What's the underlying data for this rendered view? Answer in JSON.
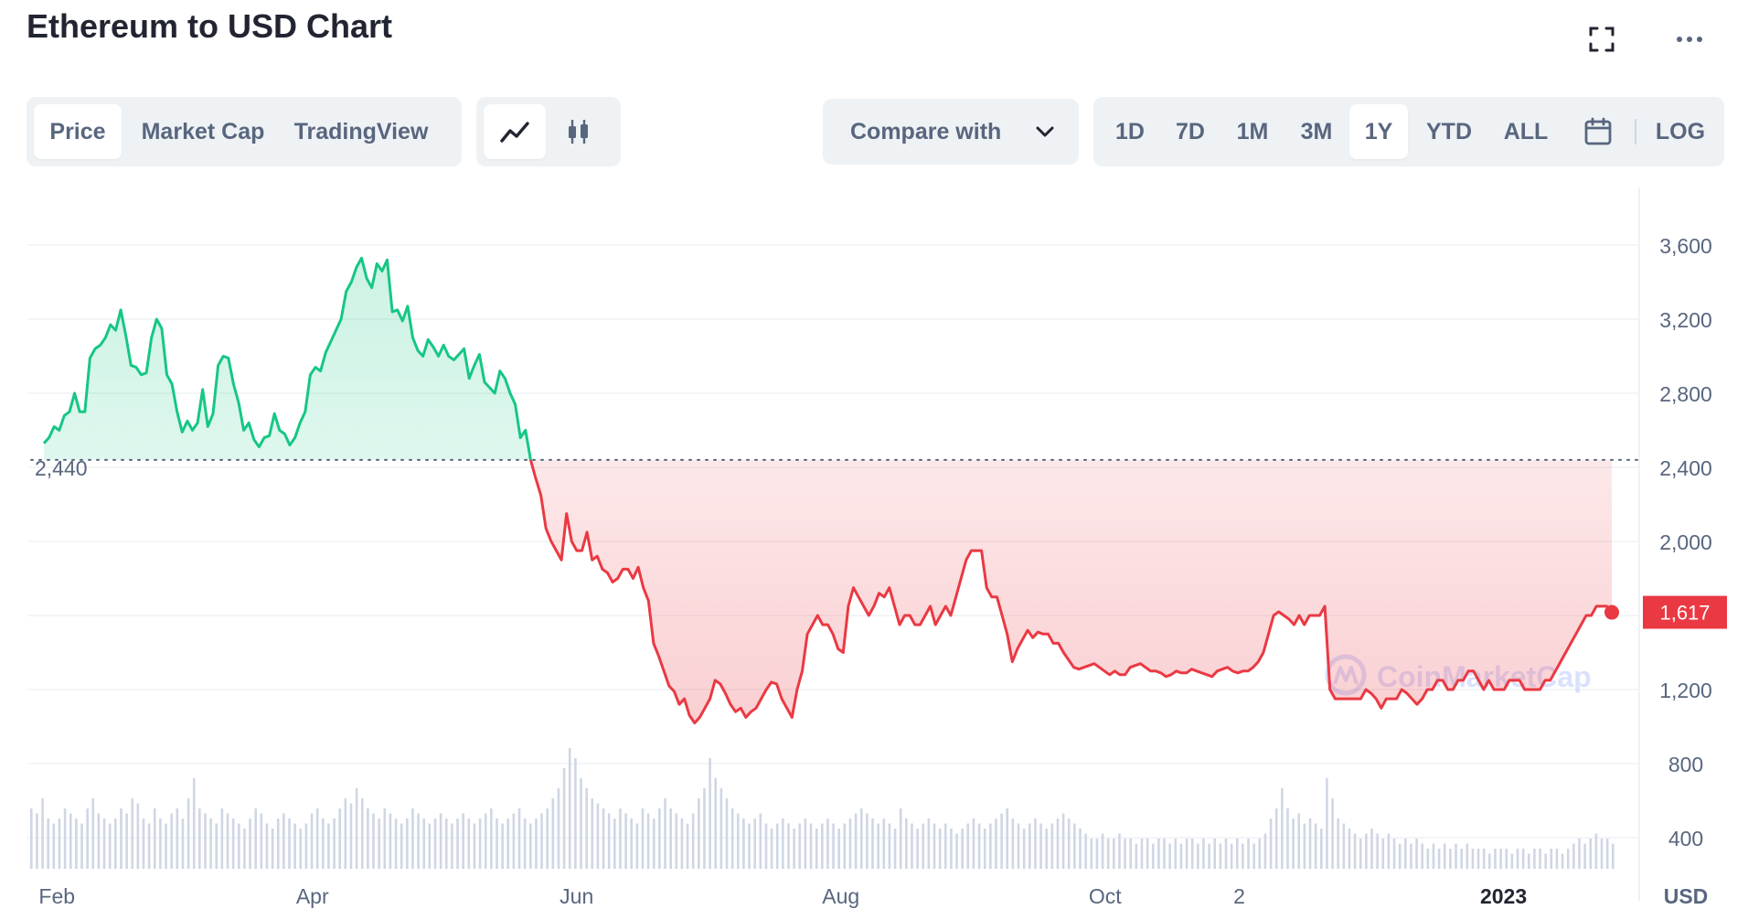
{
  "header": {
    "title": "Ethereum to USD Chart"
  },
  "icons": {
    "fullscreen": "fullscreen-icon",
    "more": "more-icon",
    "line": "line-chart-icon",
    "candle": "candlestick-icon",
    "calendar": "calendar-icon",
    "chevron": "chevron-down-icon"
  },
  "tabs": [
    {
      "label": "Price",
      "active": true
    },
    {
      "label": "Market Cap",
      "active": false
    },
    {
      "label": "TradingView",
      "active": false
    }
  ],
  "compare": {
    "label": "Compare with"
  },
  "ranges": [
    {
      "label": "1D",
      "active": false
    },
    {
      "label": "7D",
      "active": false
    },
    {
      "label": "1M",
      "active": false
    },
    {
      "label": "3M",
      "active": false
    },
    {
      "label": "1Y",
      "active": true
    },
    {
      "label": "YTD",
      "active": false
    },
    {
      "label": "ALL",
      "active": false
    }
  ],
  "log_label": "LOG",
  "watermark": "CoinMarketCap",
  "colors": {
    "up": "#16c784",
    "down": "#ea3943",
    "volume": "#cfd6e4",
    "grid": "#eff2f5",
    "text": "#58667e"
  },
  "chart_data": {
    "type": "area",
    "ylim": [
      720,
      3900
    ],
    "yticks": [
      3600,
      3200,
      2800,
      2400,
      2000,
      1600,
      1200,
      800,
      400
    ],
    "ytick_labels": [
      "3,600",
      "3,200",
      "2,800",
      "2,400",
      "2,000",
      "",
      "1,200",
      "800",
      "400"
    ],
    "x_ticks": [
      "Feb",
      "Apr",
      "Jun",
      "Aug",
      "Oct",
      "2",
      "2023"
    ],
    "x_tick_days": [
      0,
      59,
      120,
      181,
      242,
      273,
      334
    ],
    "x_unit_label": "USD",
    "x_start_day": -3,
    "x_end_day": 359,
    "baseline": 2440,
    "baseline_label": "2,440",
    "last_price": 1617,
    "last_price_label": "1,617",
    "series": [
      {
        "values": [
          2530,
          2560,
          2620,
          2600,
          2680,
          2700,
          2800,
          2700,
          2700,
          2990,
          3040,
          3060,
          3100,
          3170,
          3140,
          3250,
          3110,
          2950,
          2940,
          2900,
          2910,
          3100,
          3200,
          3150,
          2900,
          2850,
          2700,
          2590,
          2650,
          2600,
          2640,
          2820,
          2620,
          2690,
          2950,
          3000,
          2990,
          2850,
          2750,
          2600,
          2640,
          2550,
          2510,
          2560,
          2570,
          2690,
          2600,
          2580,
          2520,
          2560,
          2640,
          2700,
          2900,
          2940,
          2920,
          3020,
          3080,
          3140,
          3200,
          3350,
          3400,
          3480,
          3530,
          3420,
          3370,
          3500,
          3460,
          3520,
          3240,
          3250,
          3190,
          3270,
          3100,
          3030,
          3000,
          3090,
          3050,
          3000,
          3060,
          3000,
          2980,
          3010,
          3040,
          2880,
          2950,
          3010,
          2860,
          2830,
          2800,
          2920,
          2880,
          2800,
          2740,
          2560,
          2600,
          2440,
          2340,
          2250,
          2070,
          2000,
          1950,
          1900,
          2150,
          2000,
          1950,
          1950,
          2050,
          1900,
          1920,
          1850,
          1830,
          1780,
          1800,
          1850,
          1850,
          1800,
          1860,
          1750,
          1680,
          1450,
          1380,
          1300,
          1220,
          1190,
          1120,
          1150,
          1060,
          1020,
          1050,
          1100,
          1150,
          1250,
          1230,
          1180,
          1120,
          1080,
          1100,
          1050,
          1080,
          1100,
          1150,
          1200,
          1240,
          1230,
          1150,
          1100,
          1050,
          1200,
          1300,
          1500,
          1550,
          1600,
          1550,
          1550,
          1500,
          1420,
          1400,
          1650,
          1750,
          1700,
          1650,
          1600,
          1650,
          1720,
          1700,
          1750,
          1650,
          1550,
          1600,
          1600,
          1550,
          1550,
          1600,
          1650,
          1550,
          1600,
          1650,
          1600,
          1700,
          1800,
          1900,
          1950,
          1950,
          1950,
          1750,
          1700,
          1700,
          1600,
          1500,
          1350,
          1420,
          1470,
          1520,
          1480,
          1510,
          1500,
          1500,
          1450,
          1450,
          1400,
          1360,
          1320,
          1310,
          1320,
          1330,
          1340,
          1320,
          1300,
          1280,
          1300,
          1280,
          1280,
          1320,
          1330,
          1340,
          1320,
          1300,
          1300,
          1290,
          1270,
          1280,
          1300,
          1290,
          1290,
          1310,
          1300,
          1290,
          1280,
          1270,
          1300,
          1310,
          1320,
          1300,
          1290,
          1300,
          1300,
          1320,
          1350,
          1400,
          1500,
          1600,
          1620,
          1600,
          1580,
          1550,
          1600,
          1550,
          1600,
          1600,
          1600,
          1650,
          1200,
          1150,
          1150,
          1150,
          1150,
          1150,
          1150,
          1200,
          1180,
          1150,
          1100,
          1150,
          1150,
          1150,
          1200,
          1180,
          1150,
          1120,
          1150,
          1200,
          1200,
          1250,
          1250,
          1200,
          1200,
          1250,
          1250,
          1300,
          1300,
          1250,
          1200,
          1250,
          1200,
          1200,
          1200,
          1250,
          1250,
          1250,
          1200,
          1200,
          1200,
          1200,
          1250,
          1250,
          1300,
          1350,
          1400,
          1450,
          1500,
          1550,
          1600,
          1600,
          1650,
          1650,
          1650,
          1617
        ]
      }
    ],
    "volume": [
      0.6,
      0.55,
      0.7,
      0.5,
      0.45,
      0.5,
      0.6,
      0.55,
      0.5,
      0.45,
      0.6,
      0.7,
      0.55,
      0.5,
      0.45,
      0.5,
      0.6,
      0.55,
      0.7,
      0.65,
      0.5,
      0.45,
      0.6,
      0.5,
      0.45,
      0.55,
      0.6,
      0.5,
      0.7,
      0.9,
      0.6,
      0.55,
      0.5,
      0.45,
      0.6,
      0.55,
      0.5,
      0.45,
      0.4,
      0.5,
      0.6,
      0.55,
      0.45,
      0.4,
      0.5,
      0.55,
      0.5,
      0.45,
      0.4,
      0.45,
      0.55,
      0.6,
      0.5,
      0.45,
      0.5,
      0.6,
      0.7,
      0.65,
      0.8,
      0.7,
      0.6,
      0.55,
      0.5,
      0.6,
      0.55,
      0.5,
      0.45,
      0.5,
      0.6,
      0.55,
      0.5,
      0.45,
      0.5,
      0.55,
      0.5,
      0.45,
      0.5,
      0.55,
      0.5,
      0.45,
      0.5,
      0.55,
      0.6,
      0.5,
      0.45,
      0.5,
      0.55,
      0.6,
      0.5,
      0.45,
      0.5,
      0.55,
      0.6,
      0.7,
      0.8,
      1.0,
      1.2,
      1.1,
      0.9,
      0.8,
      0.7,
      0.65,
      0.6,
      0.55,
      0.5,
      0.6,
      0.55,
      0.5,
      0.45,
      0.6,
      0.55,
      0.5,
      0.6,
      0.7,
      0.6,
      0.55,
      0.5,
      0.45,
      0.55,
      0.7,
      0.8,
      1.1,
      0.9,
      0.8,
      0.7,
      0.6,
      0.55,
      0.5,
      0.45,
      0.5,
      0.55,
      0.45,
      0.4,
      0.45,
      0.5,
      0.45,
      0.4,
      0.45,
      0.5,
      0.45,
      0.4,
      0.45,
      0.5,
      0.45,
      0.4,
      0.45,
      0.5,
      0.55,
      0.6,
      0.55,
      0.5,
      0.45,
      0.5,
      0.45,
      0.4,
      0.6,
      0.5,
      0.45,
      0.4,
      0.45,
      0.5,
      0.45,
      0.4,
      0.45,
      0.4,
      0.35,
      0.4,
      0.45,
      0.5,
      0.45,
      0.4,
      0.45,
      0.5,
      0.55,
      0.6,
      0.5,
      0.45,
      0.4,
      0.45,
      0.5,
      0.45,
      0.4,
      0.45,
      0.5,
      0.55,
      0.5,
      0.45,
      0.4,
      0.35,
      0.3,
      0.3,
      0.35,
      0.3,
      0.3,
      0.35,
      0.3,
      0.3,
      0.25,
      0.3,
      0.3,
      0.25,
      0.3,
      0.3,
      0.25,
      0.3,
      0.25,
      0.3,
      0.3,
      0.25,
      0.3,
      0.25,
      0.3,
      0.25,
      0.3,
      0.25,
      0.3,
      0.25,
      0.3,
      0.25,
      0.3,
      0.35,
      0.5,
      0.6,
      0.8,
      0.6,
      0.5,
      0.55,
      0.45,
      0.5,
      0.45,
      0.4,
      0.9,
      0.7,
      0.5,
      0.45,
      0.4,
      0.35,
      0.3,
      0.35,
      0.4,
      0.35,
      0.3,
      0.35,
      0.3,
      0.25,
      0.3,
      0.25,
      0.3,
      0.25,
      0.2,
      0.25,
      0.2,
      0.25,
      0.2,
      0.25,
      0.2,
      0.25,
      0.2,
      0.2,
      0.2,
      0.15,
      0.2,
      0.2,
      0.2,
      0.15,
      0.2,
      0.2,
      0.15,
      0.2,
      0.2,
      0.15,
      0.2,
      0.2,
      0.15,
      0.2,
      0.25,
      0.3,
      0.25,
      0.3,
      0.35,
      0.3,
      0.3,
      0.25
    ]
  }
}
